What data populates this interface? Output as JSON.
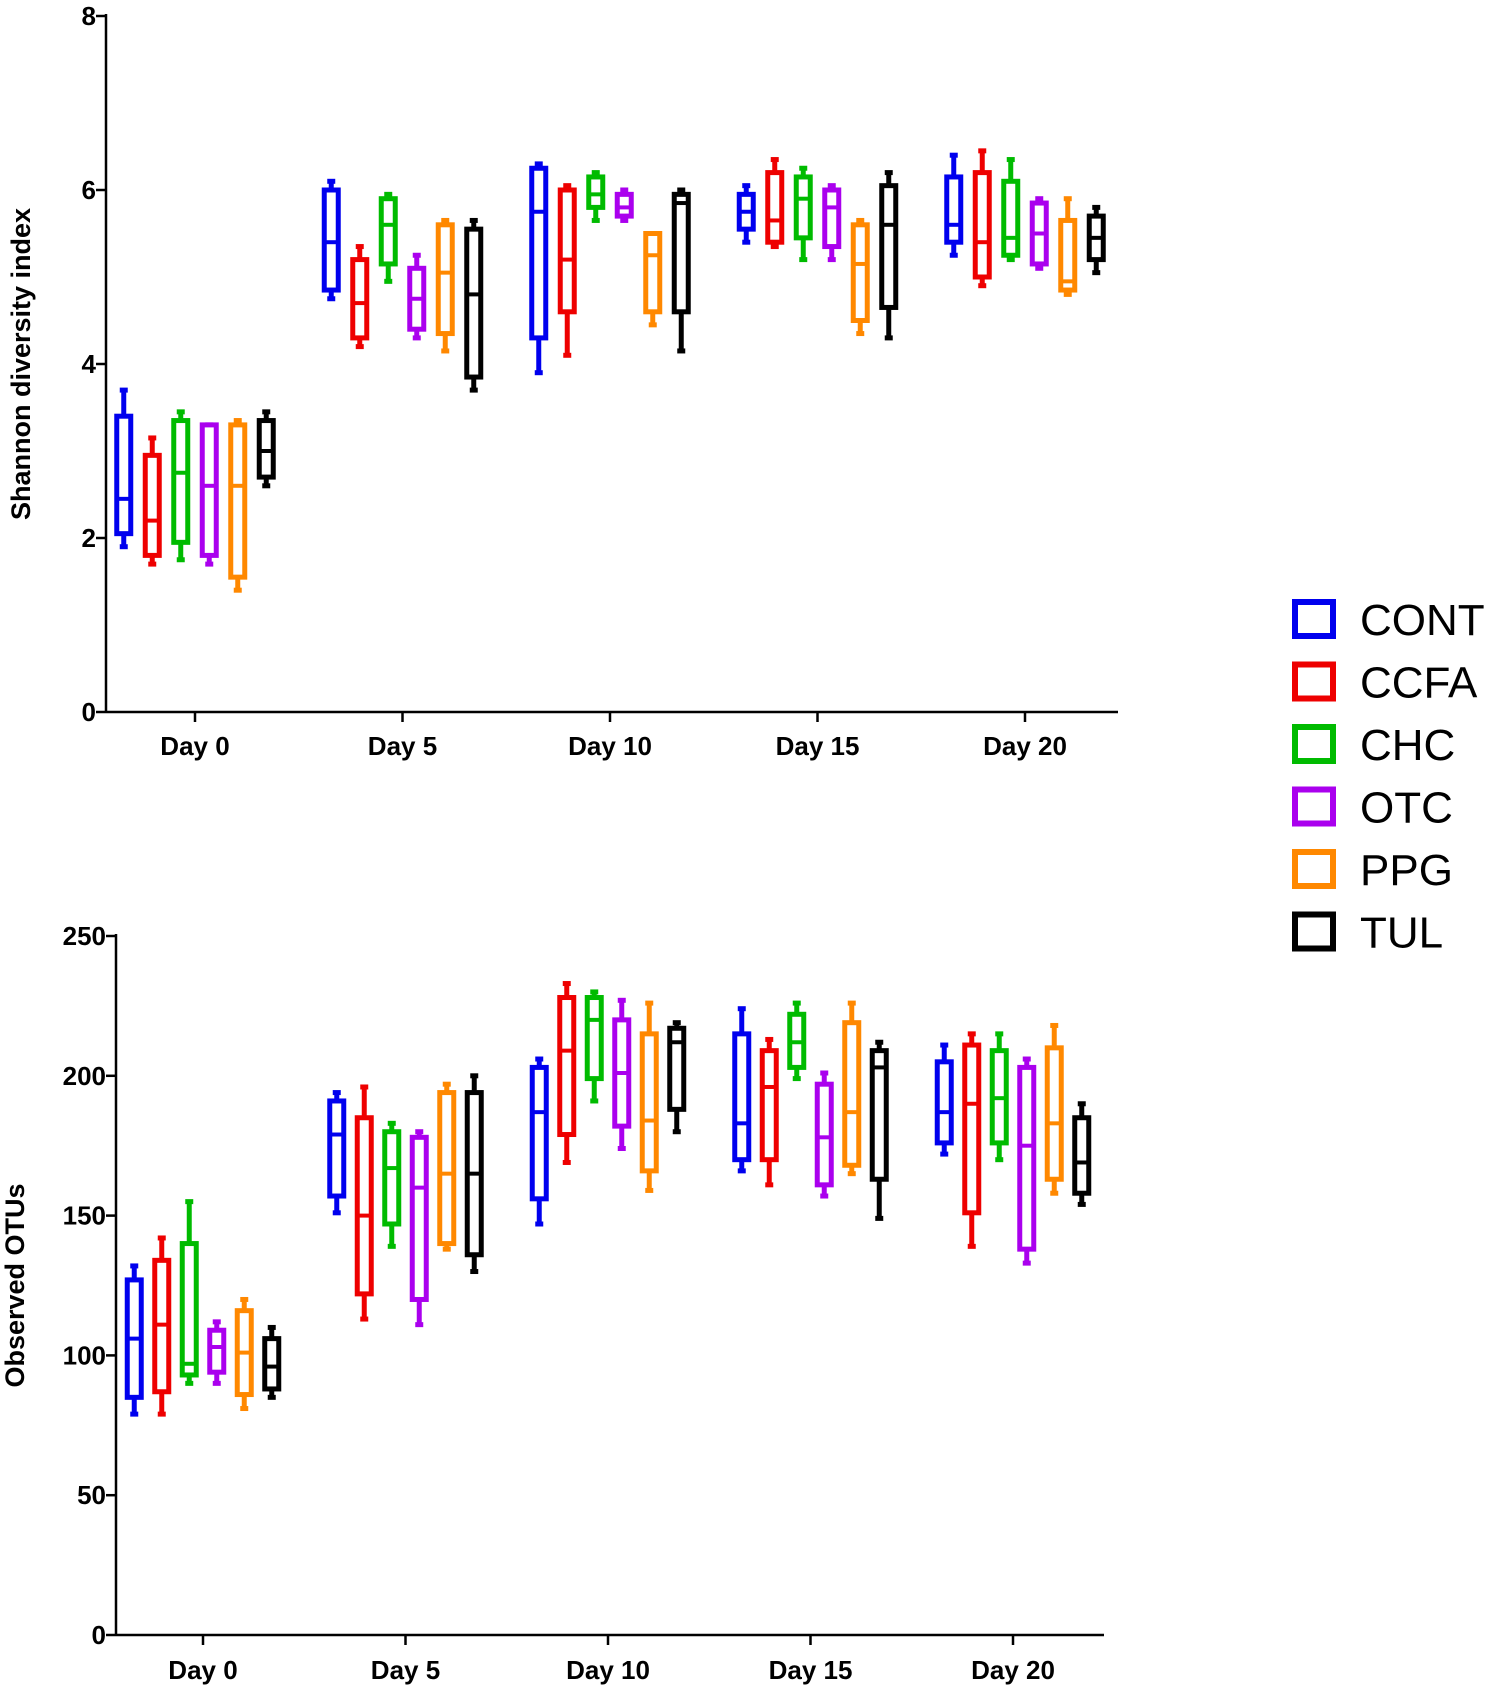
{
  "chart_data": [
    {
      "type": "box",
      "ylabel": "Shannon diversity index",
      "xlabel": "",
      "ylim": [
        0,
        8
      ],
      "yticks": [
        "0",
        "2",
        "4",
        "6",
        "8"
      ],
      "categories": [
        "Day 0",
        "Day 5",
        "Day 10",
        "Day 15",
        "Day 20"
      ],
      "series": [
        {
          "name": "CONT",
          "values": [
            {
              "min": 1.9,
              "q1": 2.05,
              "median": 2.45,
              "q3": 3.4,
              "max": 3.7
            },
            {
              "min": 4.75,
              "q1": 4.85,
              "median": 5.4,
              "q3": 6.0,
              "max": 6.1
            },
            {
              "min": 3.9,
              "q1": 4.3,
              "median": 5.75,
              "q3": 6.25,
              "max": 6.3
            },
            {
              "min": 5.4,
              "q1": 5.55,
              "median": 5.75,
              "q3": 5.95,
              "max": 6.05
            },
            {
              "min": 5.25,
              "q1": 5.4,
              "median": 5.6,
              "q3": 6.15,
              "max": 6.4
            }
          ]
        },
        {
          "name": "CCFA",
          "values": [
            {
              "min": 1.7,
              "q1": 1.8,
              "median": 2.2,
              "q3": 2.95,
              "max": 3.15
            },
            {
              "min": 4.2,
              "q1": 4.3,
              "median": 4.7,
              "q3": 5.2,
              "max": 5.35
            },
            {
              "min": 4.1,
              "q1": 4.6,
              "median": 5.2,
              "q3": 6.0,
              "max": 6.05
            },
            {
              "min": 5.35,
              "q1": 5.4,
              "median": 5.65,
              "q3": 6.2,
              "max": 6.35
            },
            {
              "min": 4.9,
              "q1": 5.0,
              "median": 5.4,
              "q3": 6.2,
              "max": 6.45
            }
          ]
        },
        {
          "name": "CHC",
          "values": [
            {
              "min": 1.75,
              "q1": 1.95,
              "median": 2.75,
              "q3": 3.35,
              "max": 3.45
            },
            {
              "min": 4.95,
              "q1": 5.15,
              "median": 5.6,
              "q3": 5.9,
              "max": 5.95
            },
            {
              "min": 5.65,
              "q1": 5.8,
              "median": 5.95,
              "q3": 6.15,
              "max": 6.2
            },
            {
              "min": 5.2,
              "q1": 5.45,
              "median": 5.9,
              "q3": 6.15,
              "max": 6.25
            },
            {
              "min": 5.2,
              "q1": 5.25,
              "median": 5.45,
              "q3": 6.1,
              "max": 6.35
            }
          ]
        },
        {
          "name": "OTC",
          "values": [
            {
              "min": 1.7,
              "q1": 1.8,
              "median": 2.6,
              "q3": 3.3,
              "max": 3.3
            },
            {
              "min": 4.3,
              "q1": 4.4,
              "median": 4.75,
              "q3": 5.1,
              "max": 5.25
            },
            {
              "min": 5.65,
              "q1": 5.7,
              "median": 5.8,
              "q3": 5.95,
              "max": 6.0
            },
            {
              "min": 5.2,
              "q1": 5.35,
              "median": 5.8,
              "q3": 6.0,
              "max": 6.05
            },
            {
              "min": 5.1,
              "q1": 5.15,
              "median": 5.5,
              "q3": 5.85,
              "max": 5.9
            }
          ]
        },
        {
          "name": "PPG",
          "values": [
            {
              "min": 1.4,
              "q1": 1.55,
              "median": 2.6,
              "q3": 3.3,
              "max": 3.35
            },
            {
              "min": 4.15,
              "q1": 4.35,
              "median": 5.05,
              "q3": 5.6,
              "max": 5.65
            },
            {
              "min": 4.45,
              "q1": 4.6,
              "median": 5.25,
              "q3": 5.5,
              "max": 5.5
            },
            {
              "min": 4.35,
              "q1": 4.5,
              "median": 5.15,
              "q3": 5.6,
              "max": 5.65
            },
            {
              "min": 4.8,
              "q1": 4.85,
              "median": 4.95,
              "q3": 5.65,
              "max": 5.9
            }
          ]
        },
        {
          "name": "TUL",
          "values": [
            {
              "min": 2.6,
              "q1": 2.7,
              "median": 3.0,
              "q3": 3.35,
              "max": 3.45
            },
            {
              "min": 3.7,
              "q1": 3.85,
              "median": 4.8,
              "q3": 5.55,
              "max": 5.65
            },
            {
              "min": 4.15,
              "q1": 4.6,
              "median": 5.85,
              "q3": 5.95,
              "max": 6.0
            },
            {
              "min": 4.3,
              "q1": 4.65,
              "median": 5.6,
              "q3": 6.05,
              "max": 6.2
            },
            {
              "min": 5.05,
              "q1": 5.2,
              "median": 5.45,
              "q3": 5.7,
              "max": 5.8
            }
          ]
        }
      ]
    },
    {
      "type": "box",
      "ylabel": "Observed OTUs",
      "xlabel": "",
      "ylim": [
        0,
        250
      ],
      "yticks": [
        "0",
        "50",
        "100",
        "150",
        "200",
        "250"
      ],
      "categories": [
        "Day 0",
        "Day 5",
        "Day 10",
        "Day 15",
        "Day 20"
      ],
      "series": [
        {
          "name": "CONT",
          "values": [
            {
              "min": 79,
              "q1": 85,
              "median": 106,
              "q3": 127,
              "max": 132
            },
            {
              "min": 151,
              "q1": 157,
              "median": 179,
              "q3": 191,
              "max": 194
            },
            {
              "min": 147,
              "q1": 156,
              "median": 187,
              "q3": 203,
              "max": 206
            },
            {
              "min": 166,
              "q1": 170,
              "median": 183,
              "q3": 215,
              "max": 224
            },
            {
              "min": 172,
              "q1": 176,
              "median": 187,
              "q3": 205,
              "max": 211
            }
          ]
        },
        {
          "name": "CCFA",
          "values": [
            {
              "min": 79,
              "q1": 87,
              "median": 111,
              "q3": 134,
              "max": 142
            },
            {
              "min": 113,
              "q1": 122,
              "median": 150,
              "q3": 185,
              "max": 196
            },
            {
              "min": 169,
              "q1": 179,
              "median": 209,
              "q3": 228,
              "max": 233
            },
            {
              "min": 161,
              "q1": 170,
              "median": 196,
              "q3": 209,
              "max": 213
            },
            {
              "min": 139,
              "q1": 151,
              "median": 190,
              "q3": 211,
              "max": 215
            }
          ]
        },
        {
          "name": "CHC",
          "values": [
            {
              "min": 90,
              "q1": 93,
              "median": 97,
              "q3": 140,
              "max": 155
            },
            {
              "min": 139,
              "q1": 147,
              "median": 167,
              "q3": 180,
              "max": 183
            },
            {
              "min": 191,
              "q1": 199,
              "median": 220,
              "q3": 228,
              "max": 230
            },
            {
              "min": 199,
              "q1": 203,
              "median": 212,
              "q3": 222,
              "max": 226
            },
            {
              "min": 170,
              "q1": 176,
              "median": 192,
              "q3": 209,
              "max": 215
            }
          ]
        },
        {
          "name": "OTC",
          "values": [
            {
              "min": 90,
              "q1": 94,
              "median": 103,
              "q3": 109,
              "max": 112
            },
            {
              "min": 111,
              "q1": 120,
              "median": 160,
              "q3": 178,
              "max": 180
            },
            {
              "min": 174,
              "q1": 182,
              "median": 201,
              "q3": 220,
              "max": 227
            },
            {
              "min": 157,
              "q1": 161,
              "median": 178,
              "q3": 197,
              "max": 201
            },
            {
              "min": 133,
              "q1": 138,
              "median": 175,
              "q3": 203,
              "max": 206
            }
          ]
        },
        {
          "name": "PPG",
          "values": [
            {
              "min": 81,
              "q1": 86,
              "median": 101,
              "q3": 116,
              "max": 120
            },
            {
              "min": 138,
              "q1": 140,
              "median": 165,
              "q3": 194,
              "max": 197
            },
            {
              "min": 159,
              "q1": 166,
              "median": 184,
              "q3": 215,
              "max": 226
            },
            {
              "min": 165,
              "q1": 168,
              "median": 187,
              "q3": 219,
              "max": 226
            },
            {
              "min": 158,
              "q1": 163,
              "median": 183,
              "q3": 210,
              "max": 218
            }
          ]
        },
        {
          "name": "TUL",
          "values": [
            {
              "min": 85,
              "q1": 88,
              "median": 96,
              "q3": 106,
              "max": 110
            },
            {
              "min": 130,
              "q1": 136,
              "median": 165,
              "q3": 194,
              "max": 200
            },
            {
              "min": 180,
              "q1": 188,
              "median": 212,
              "q3": 217,
              "max": 219
            },
            {
              "min": 149,
              "q1": 163,
              "median": 203,
              "q3": 209,
              "max": 212
            },
            {
              "min": 154,
              "q1": 158,
              "median": 169,
              "q3": 185,
              "max": 190
            }
          ]
        }
      ]
    }
  ],
  "legend": {
    "items": [
      {
        "label": "CONT",
        "color": "#0000ee"
      },
      {
        "label": "CCFA",
        "color": "#ee0000"
      },
      {
        "label": "CHC",
        "color": "#00bb00"
      },
      {
        "label": "OTC",
        "color": "#aa00ee"
      },
      {
        "label": "PPG",
        "color": "#ff8800"
      },
      {
        "label": "TUL",
        "color": "#000000"
      }
    ]
  }
}
